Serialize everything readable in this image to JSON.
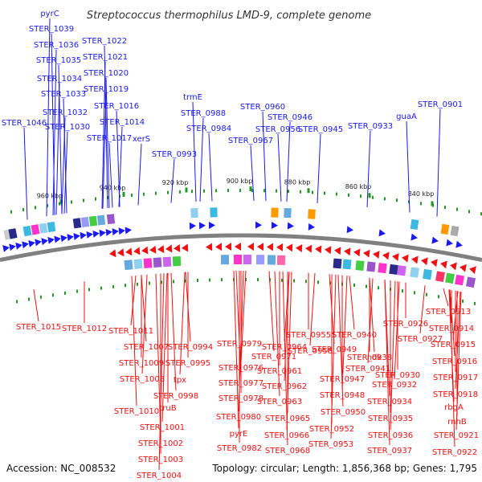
{
  "title": "Streptococcus thermophilus LMD-9, complete genome",
  "footer": {
    "accession": "Accession: NC_008532",
    "summary": "Topology: circular; Length: 1,856,368 bp; Genes: 1,795"
  },
  "ruler": [
    "960 kbp",
    "940 kbp",
    "920 kbp",
    "900 kbp",
    "880 kbp",
    "860 kbp",
    "840 kbp"
  ],
  "colors": {
    "forward": "#1a1aee",
    "reverse": "#ee1111",
    "backbone": "#808080",
    "tick": "#229922"
  },
  "forward_labels": [
    "pyrC",
    "STER_1039",
    "STER_1036",
    "STER_1035",
    "STER_1034",
    "STER_1033",
    "STER_1032",
    "STER_1046",
    "STER_1030",
    "STER_1022",
    "STER_1021",
    "STER_1020",
    "STER_1019",
    "STER_1016",
    "STER_1014",
    "STER_1017",
    "xerS",
    "trmE",
    "STER_0988",
    "STER_0984",
    "STER_0993",
    "STER_0960",
    "STER_0946",
    "STER_0956",
    "STER_0945",
    "STER_0967",
    "STER_0933",
    "guaA",
    "STER_0901"
  ],
  "reverse_labels": [
    "STER_1015",
    "STER_1012",
    "STER_1011",
    "STER_1007",
    "STER_1009",
    "STER_1008",
    "STER_1010",
    "truB",
    "STER_1001",
    "STER_1002",
    "STER_1003",
    "STER_1004",
    "STER_0994",
    "STER_0995",
    "tpx",
    "STER_0998",
    "STER_0979",
    "STER_0976",
    "STER_0977",
    "STER_0978",
    "STER_0980",
    "pyrE",
    "STER_0982",
    "STER_0964",
    "STER_0971",
    "STER_0961",
    "STER_0962",
    "STER_0963",
    "STER_0965",
    "STER_0966",
    "STER_0968",
    "STER_0955",
    "STER_0958",
    "STER_0949",
    "STER_0947",
    "STER_0948",
    "STER_0950",
    "STER_0952",
    "STER_0953",
    "STER_0940",
    "STER_0938",
    "STER_0941",
    "ndk",
    "STER_0930",
    "STER_0932",
    "STER_0934",
    "STER_0935",
    "STER_0936",
    "STER_0937",
    "STER_0926",
    "STER_0927",
    "STER_0913",
    "STER_0914",
    "STER_0915",
    "STER_0916",
    "STER_0917",
    "STER_0918",
    "rbgA",
    "rnhB",
    "STER_0921",
    "STER_0922"
  ]
}
